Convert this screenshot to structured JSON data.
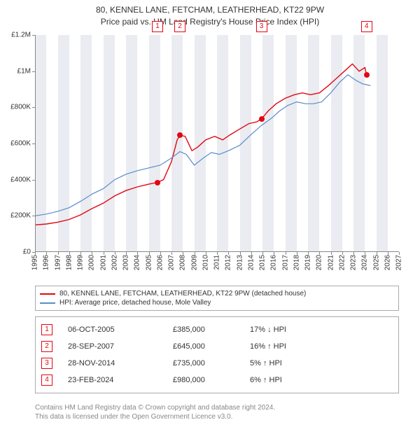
{
  "title": {
    "line1": "80, KENNEL LANE, FETCHAM, LEATHERHEAD, KT22 9PW",
    "line2": "Price paid vs. HM Land Registry's House Price Index (HPI)"
  },
  "chart": {
    "type": "line",
    "background_color": "#ffffff",
    "shade_color": "#e6e9ef",
    "axis_color": "#888888",
    "x": {
      "min": 1995,
      "max": 2027,
      "tick_step": 1,
      "label_fontsize": 10
    },
    "y": {
      "min": 0,
      "max": 1200000,
      "tick_step": 200000,
      "tick_labels": [
        "£0",
        "£200K",
        "£400K",
        "£600K",
        "£800K",
        "£1M",
        "£1.2M"
      ],
      "label_fontsize": 10
    },
    "series": [
      {
        "name": "property",
        "color": "#e30613",
        "width": 1.4,
        "points": [
          [
            1995.0,
            150000
          ],
          [
            1996.0,
            155000
          ],
          [
            1997.0,
            165000
          ],
          [
            1998.0,
            180000
          ],
          [
            1999.0,
            205000
          ],
          [
            2000.0,
            240000
          ],
          [
            2001.0,
            270000
          ],
          [
            2002.0,
            310000
          ],
          [
            2003.0,
            340000
          ],
          [
            2004.0,
            360000
          ],
          [
            2005.0,
            375000
          ],
          [
            2005.77,
            385000
          ],
          [
            2006.3,
            400000
          ],
          [
            2007.0,
            500000
          ],
          [
            2007.5,
            620000
          ],
          [
            2007.74,
            645000
          ],
          [
            2008.2,
            640000
          ],
          [
            2008.8,
            560000
          ],
          [
            2009.3,
            580000
          ],
          [
            2010.0,
            620000
          ],
          [
            2010.8,
            640000
          ],
          [
            2011.5,
            620000
          ],
          [
            2012.2,
            650000
          ],
          [
            2013.0,
            680000
          ],
          [
            2013.8,
            710000
          ],
          [
            2014.5,
            720000
          ],
          [
            2014.91,
            735000
          ],
          [
            2015.5,
            780000
          ],
          [
            2016.2,
            820000
          ],
          [
            2017.0,
            850000
          ],
          [
            2017.8,
            870000
          ],
          [
            2018.5,
            880000
          ],
          [
            2019.2,
            870000
          ],
          [
            2020.0,
            880000
          ],
          [
            2020.8,
            920000
          ],
          [
            2021.5,
            960000
          ],
          [
            2022.2,
            1000000
          ],
          [
            2022.9,
            1040000
          ],
          [
            2023.5,
            1000000
          ],
          [
            2024.0,
            1020000
          ],
          [
            2024.15,
            980000
          ]
        ]
      },
      {
        "name": "hpi",
        "color": "#5b8bc9",
        "width": 1.2,
        "points": [
          [
            1995.0,
            200000
          ],
          [
            1996.0,
            210000
          ],
          [
            1997.0,
            225000
          ],
          [
            1998.0,
            245000
          ],
          [
            1999.0,
            280000
          ],
          [
            2000.0,
            320000
          ],
          [
            2001.0,
            350000
          ],
          [
            2002.0,
            400000
          ],
          [
            2003.0,
            430000
          ],
          [
            2004.0,
            450000
          ],
          [
            2005.0,
            465000
          ],
          [
            2006.0,
            480000
          ],
          [
            2007.0,
            520000
          ],
          [
            2007.74,
            555000
          ],
          [
            2008.3,
            540000
          ],
          [
            2009.0,
            480000
          ],
          [
            2009.8,
            520000
          ],
          [
            2010.5,
            550000
          ],
          [
            2011.2,
            540000
          ],
          [
            2012.0,
            560000
          ],
          [
            2013.0,
            590000
          ],
          [
            2014.0,
            650000
          ],
          [
            2014.91,
            700000
          ],
          [
            2015.8,
            740000
          ],
          [
            2016.5,
            780000
          ],
          [
            2017.2,
            810000
          ],
          [
            2018.0,
            830000
          ],
          [
            2018.8,
            820000
          ],
          [
            2019.5,
            820000
          ],
          [
            2020.2,
            830000
          ],
          [
            2021.0,
            880000
          ],
          [
            2021.8,
            940000
          ],
          [
            2022.5,
            980000
          ],
          [
            2023.2,
            950000
          ],
          [
            2023.8,
            930000
          ],
          [
            2024.15,
            925000
          ],
          [
            2024.5,
            920000
          ]
        ]
      }
    ],
    "sale_markers": [
      {
        "n": "1",
        "x": 2005.77,
        "y": 385000,
        "color": "#e30613"
      },
      {
        "n": "2",
        "x": 2007.74,
        "y": 645000,
        "color": "#e30613"
      },
      {
        "n": "3",
        "x": 2014.91,
        "y": 735000,
        "color": "#e30613"
      },
      {
        "n": "4",
        "x": 2024.15,
        "y": 980000,
        "color": "#e30613"
      }
    ],
    "shaded_year_bands": [
      [
        1995,
        1996
      ],
      [
        1997,
        1998
      ],
      [
        1999,
        2000
      ],
      [
        2001,
        2002
      ],
      [
        2003,
        2004
      ],
      [
        2005,
        2006
      ],
      [
        2007,
        2008
      ],
      [
        2009,
        2010
      ],
      [
        2011,
        2012
      ],
      [
        2013,
        2014
      ],
      [
        2015,
        2016
      ],
      [
        2017,
        2018
      ],
      [
        2019,
        2020
      ],
      [
        2021,
        2022
      ],
      [
        2023,
        2024
      ],
      [
        2025,
        2026
      ]
    ]
  },
  "legend": {
    "items": [
      {
        "color": "#e30613",
        "label": "80, KENNEL LANE, FETCHAM, LEATHERHEAD, KT22 9PW (detached house)"
      },
      {
        "color": "#5b8bc9",
        "label": "HPI: Average price, detached house, Mole Valley"
      }
    ]
  },
  "transactions": [
    {
      "n": "1",
      "date": "06-OCT-2005",
      "price": "£385,000",
      "diff": "17% ↓ HPI",
      "color": "#e30613"
    },
    {
      "n": "2",
      "date": "28-SEP-2007",
      "price": "£645,000",
      "diff": "16% ↑ HPI",
      "color": "#e30613"
    },
    {
      "n": "3",
      "date": "28-NOV-2014",
      "price": "£735,000",
      "diff": "5% ↑ HPI",
      "color": "#e30613"
    },
    {
      "n": "4",
      "date": "23-FEB-2024",
      "price": "£980,000",
      "diff": "6% ↑ HPI",
      "color": "#e30613"
    }
  ],
  "footer": {
    "line1": "Contains HM Land Registry data © Crown copyright and database right 2024.",
    "line2": "This data is licensed under the Open Government Licence v3.0."
  }
}
